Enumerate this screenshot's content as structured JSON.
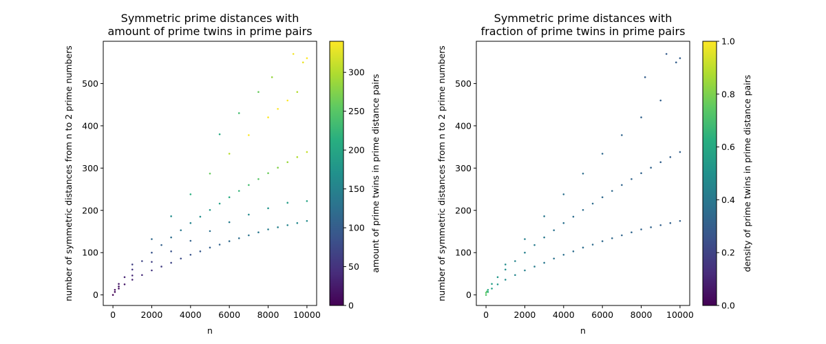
{
  "chart_data": [
    {
      "type": "scatter",
      "title": "Symmetric prime distances with\namount of prime twins in prime pairs",
      "xlabel": "n",
      "ylabel": "number of symmetric distances from n to 2 prime numbers",
      "xlim": [
        -500,
        10500
      ],
      "ylim": [
        -25,
        600
      ],
      "xticks": [
        0,
        2000,
        4000,
        6000,
        8000,
        10000
      ],
      "yticks": [
        0,
        100,
        200,
        300,
        400,
        500
      ],
      "grid": false,
      "colormap": "viridis",
      "colorbar": {
        "label": "amount of prime twins in prime distance pairs",
        "range": [
          0,
          340
        ],
        "ticks": [
          0,
          50,
          100,
          150,
          200,
          250,
          300
        ]
      },
      "series": [
        {
          "points": [
            [
              0,
              0,
              0
            ],
            [
              100,
              7,
              6
            ],
            [
              300,
              15,
              12
            ],
            [
              600,
              25,
              22
            ],
            [
              1000,
              36,
              32
            ],
            [
              1500,
              47,
              42
            ],
            [
              2000,
              58,
              52
            ],
            [
              2500,
              67,
              61
            ],
            [
              3000,
              76,
              70
            ],
            [
              3500,
              86,
              79
            ],
            [
              4000,
              95,
              87
            ],
            [
              4500,
              103,
              95
            ],
            [
              5000,
              112,
              102
            ],
            [
              5500,
              119,
              109
            ],
            [
              6000,
              127,
              116
            ],
            [
              6500,
              134,
              122
            ],
            [
              7000,
              141,
              129
            ],
            [
              7500,
              148,
              135
            ],
            [
              8000,
              155,
              142
            ],
            [
              8500,
              160,
              147
            ],
            [
              9000,
              165,
              152
            ],
            [
              9500,
              170,
              157
            ],
            [
              10000,
              175,
              162
            ],
            [
              100,
              12,
              10
            ],
            [
              300,
              26,
              22
            ],
            [
              600,
              42,
              36
            ],
            [
              1000,
              60,
              52
            ],
            [
              1500,
              80,
              70
            ],
            [
              2000,
              100,
              88
            ],
            [
              2500,
              118,
              105
            ],
            [
              3000,
              136,
              121
            ],
            [
              3500,
              153,
              137
            ],
            [
              4000,
              170,
              152
            ],
            [
              4500,
              185,
              167
            ],
            [
              5000,
              201,
              181
            ],
            [
              5500,
              216,
              195
            ],
            [
              6000,
              231,
              209
            ],
            [
              6500,
              246,
              222
            ],
            [
              7000,
              260,
              236
            ],
            [
              7500,
              274,
              249
            ],
            [
              8000,
              288,
              262
            ],
            [
              8500,
              301,
              275
            ],
            [
              9000,
              314,
              287
            ],
            [
              9500,
              326,
              299
            ],
            [
              10000,
              338,
              310
            ],
            [
              300,
              20,
              16
            ],
            [
              1000,
              46,
              38
            ],
            [
              2000,
              78,
              64
            ],
            [
              3000,
              103,
              86
            ],
            [
              4000,
              128,
              106
            ],
            [
              5000,
              151,
              125
            ],
            [
              6000,
              172,
              143
            ],
            [
              7000,
              190,
              160
            ],
            [
              8000,
              205,
              175
            ],
            [
              9000,
              218,
              188
            ],
            [
              10000,
              222,
              195
            ],
            [
              1000,
              72,
              62
            ],
            [
              2000,
              132,
              116
            ],
            [
              3000,
              186,
              166
            ],
            [
              4000,
              238,
              214
            ],
            [
              5000,
              287,
              259
            ],
            [
              6000,
              334,
              303
            ],
            [
              7000,
              378,
              345
            ],
            [
              8000,
              420,
              385
            ],
            [
              8500,
              440,
              404
            ],
            [
              9000,
              460,
              422
            ],
            [
              9300,
              570,
              334
            ],
            [
              9500,
              480,
              300
            ],
            [
              9800,
              550,
              330
            ],
            [
              10000,
              560,
              340
            ],
            [
              8200,
              515,
              285
            ],
            [
              7500,
              480,
              260
            ],
            [
              6500,
              430,
              235
            ],
            [
              5500,
              380,
              205
            ]
          ]
        }
      ]
    },
    {
      "type": "scatter",
      "title": "Symmetric prime distances with\nfraction of prime twins in prime pairs",
      "xlabel": "n",
      "ylabel": "number of symmetric distances from n to 2 prime numbers",
      "xlim": [
        -500,
        10500
      ],
      "ylim": [
        -25,
        600
      ],
      "xticks": [
        0,
        2000,
        4000,
        6000,
        8000,
        10000
      ],
      "yticks": [
        0,
        100,
        200,
        300,
        400,
        500
      ],
      "grid": false,
      "colormap": "viridis",
      "colorbar": {
        "label": "density of prime twins in prime distance pairs",
        "range": [
          0,
          1
        ],
        "ticks": [
          0.0,
          0.2,
          0.4,
          0.6,
          0.8,
          1.0
        ]
      },
      "series": [
        {
          "points": [
            [
              0,
              0,
              0.72
            ],
            [
              100,
              7,
              0.62
            ],
            [
              300,
              15,
              0.56
            ],
            [
              600,
              25,
              0.52
            ],
            [
              1000,
              36,
              0.48
            ],
            [
              1500,
              47,
              0.45
            ],
            [
              2000,
              58,
              0.43
            ],
            [
              2500,
              67,
              0.41
            ],
            [
              3000,
              76,
              0.4
            ],
            [
              3500,
              86,
              0.38
            ],
            [
              4000,
              95,
              0.37
            ],
            [
              4500,
              103,
              0.36
            ],
            [
              5000,
              112,
              0.36
            ],
            [
              5500,
              119,
              0.35
            ],
            [
              6000,
              127,
              0.34
            ],
            [
              6500,
              134,
              0.34
            ],
            [
              7000,
              141,
              0.33
            ],
            [
              7500,
              148,
              0.33
            ],
            [
              8000,
              155,
              0.32
            ],
            [
              8500,
              160,
              0.32
            ],
            [
              9000,
              165,
              0.31
            ],
            [
              9500,
              170,
              0.31
            ],
            [
              10000,
              175,
              0.31
            ],
            [
              100,
              12,
              0.62
            ],
            [
              300,
              26,
              0.56
            ],
            [
              600,
              42,
              0.52
            ],
            [
              1000,
              60,
              0.48
            ],
            [
              1500,
              80,
              0.45
            ],
            [
              2000,
              100,
              0.43
            ],
            [
              2500,
              118,
              0.41
            ],
            [
              3000,
              136,
              0.4
            ],
            [
              3500,
              153,
              0.38
            ],
            [
              4000,
              170,
              0.37
            ],
            [
              4500,
              185,
              0.36
            ],
            [
              5000,
              201,
              0.36
            ],
            [
              5500,
              216,
              0.35
            ],
            [
              6000,
              231,
              0.34
            ],
            [
              6500,
              246,
              0.34
            ],
            [
              7000,
              260,
              0.33
            ],
            [
              7500,
              274,
              0.33
            ],
            [
              8000,
              288,
              0.32
            ],
            [
              8500,
              301,
              0.32
            ],
            [
              9000,
              314,
              0.31
            ],
            [
              9500,
              326,
              0.31
            ],
            [
              10000,
              338,
              0.31
            ],
            [
              1000,
              72,
              0.48
            ],
            [
              2000,
              132,
              0.43
            ],
            [
              3000,
              186,
              0.4
            ],
            [
              4000,
              238,
              0.37
            ],
            [
              5000,
              287,
              0.36
            ],
            [
              6000,
              334,
              0.34
            ],
            [
              7000,
              378,
              0.33
            ],
            [
              8000,
              420,
              0.32
            ],
            [
              9000,
              460,
              0.31
            ],
            [
              9300,
              570,
              0.29
            ],
            [
              9800,
              550,
              0.3
            ],
            [
              10000,
              560,
              0.3
            ],
            [
              8200,
              515,
              0.3
            ],
            [
              0,
              5,
              0.75
            ],
            [
              50,
              8,
              0.7
            ]
          ]
        }
      ]
    }
  ]
}
